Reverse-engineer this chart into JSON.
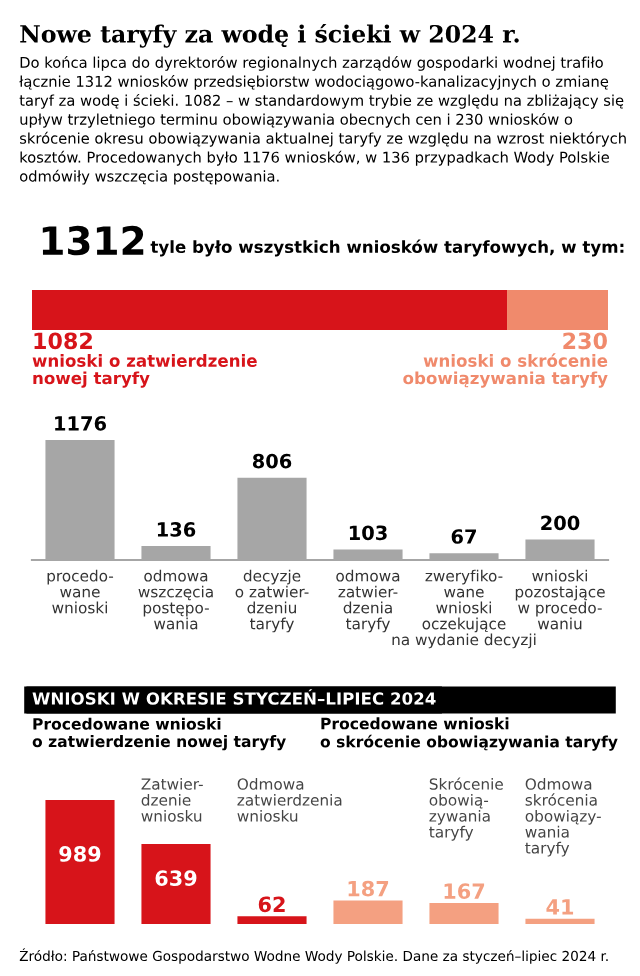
{
  "chart_data": [
    {
      "type": "bar",
      "title": "Nowe taryfy za wodę i ścieki w 2024 r.",
      "subtitle": "Do końca lipca do dyrektorów regionalnych zarządów gospodarki wodnej trafiło łącznie 1312 wniosków przedsiębiorstw wodociągowo-kanalizacyjnych o zmianę taryf za wodę i ścieki. 1082 – w standardowym trybie ze względu na zbliżający się upływ trzyletniego terminu obowiązywania obecnych cen i 230 wniosków o skrócenie okresu obowiązywania aktualnej taryfy ze względu na wzrost niektórych kosztów. Procedowanych było 1176 wniosków, w 136 przypadkach Wody Polskie odmówiły wszczęcia postępowania.",
      "orientation": "horizontal",
      "stacked": true,
      "categories": [
        null
      ],
      "data_labels": true,
      "totals": [
        "1312"
      ],
      "annotations": [
        "tyle było wszystkich wniosków taryfowych, w tym:"
      ],
      "series": [
        {
          "name": "wnioski o zatwierdzenie\nnowej taryfy",
          "color": "#d7141a",
          "values": [
            1082
          ]
        },
        {
          "name": "wnioski o skrócenie\nobowiązywania taryfy",
          "color": "#f08a6c",
          "values": [
            230
          ]
        }
      ]
    },
    {
      "type": "bar",
      "categories": [
        "procedo-\nwane\nwnioski",
        "odmowa\nwszczęcia\npostępo-\nwania",
        "decyzje\no zatwier-\ndzeniu\ntaryfy",
        "odmowa\nzatwier-\ndzenia\ntaryfy",
        "zweryfiko-\nwane\nwnioski\noczekujące\nna wydanie decyzji",
        "wnioski\npozostające\nw procedo-\nwaniu"
      ],
      "values": [
        1176,
        136,
        806,
        103,
        67,
        200
      ],
      "colors": [
        "#a6a6a6",
        "#a6a6a6",
        "#a6a6a6",
        "#a6a6a6",
        "#a6a6a6",
        "#a6a6a6"
      ],
      "data_labels": true
    },
    {
      "type": "bar",
      "title": "WNIOSKI W OKRESIE STYCZEŃ–LIPIEC 2024",
      "categories": [
        null,
        "Zatwier-\ndzenie\nwniosku",
        "Odmowa\nzatwierdzenia\nwniosku",
        null,
        "Skrócenie\nobowią-\nzywania\ntaryfy",
        "Odmowa\nskrócenia\nobowiązy-\nwania\ntaryfy"
      ],
      "values": [
        989,
        639,
        62,
        187,
        167,
        41
      ],
      "colors": [
        "#d7141a",
        "#d7141a",
        "#d7141a",
        "#f4a081",
        "#f4a081",
        "#f4a081"
      ],
      "data_labels": true,
      "annotations": [
        "Procedowane wnioski\no zatwierdzenie nowej taryfy",
        "Procedowane wnioski\no skrócenie obowiązywania taryfy",
        "Źródło: Państwowe Gospodarstwo Wodne Wody Polskie. Dane za styczeń–lipiec 2024 r."
      ]
    }
  ]
}
